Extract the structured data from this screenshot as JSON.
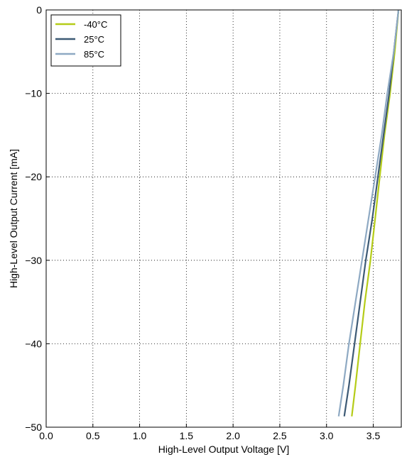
{
  "chart_data": {
    "type": "line",
    "xlabel": "High-Level Output Voltage [V]",
    "ylabel": "High-Level Output Current [mA]",
    "xlim": [
      0.0,
      3.8
    ],
    "ylim": [
      -50,
      0
    ],
    "xticks": [
      "0.0",
      "0.5",
      "1.0",
      "1.5",
      "2.0",
      "2.5",
      "3.0",
      "3.5"
    ],
    "xtick_values": [
      0.0,
      0.5,
      1.0,
      1.5,
      2.0,
      2.5,
      3.0,
      3.5
    ],
    "yticks": [
      "0",
      "−10",
      "−20",
      "−30",
      "−40",
      "−50"
    ],
    "ytick_values": [
      0,
      -10,
      -20,
      -30,
      -40,
      -50
    ],
    "grid": true,
    "legend_position": "top-left",
    "series": [
      {
        "name": "-40°C",
        "color": "#b5cc18",
        "points": [
          [
            3.77,
            0
          ],
          [
            3.73,
            -5
          ],
          [
            3.68,
            -10
          ],
          [
            3.62,
            -15
          ],
          [
            3.57,
            -20
          ],
          [
            3.52,
            -25
          ],
          [
            3.47,
            -30
          ],
          [
            3.41,
            -35
          ],
          [
            3.36,
            -40
          ],
          [
            3.31,
            -45
          ],
          [
            3.27,
            -48.7
          ]
        ]
      },
      {
        "name": "25°C",
        "color": "#3d5a75",
        "points": [
          [
            3.77,
            0
          ],
          [
            3.72,
            -5
          ],
          [
            3.67,
            -10
          ],
          [
            3.61,
            -15
          ],
          [
            3.55,
            -20
          ],
          [
            3.49,
            -25
          ],
          [
            3.42,
            -30
          ],
          [
            3.36,
            -35
          ],
          [
            3.3,
            -40
          ],
          [
            3.24,
            -45
          ],
          [
            3.19,
            -48.7
          ]
        ]
      },
      {
        "name": "85°C",
        "color": "#8ea9c3",
        "points": [
          [
            3.77,
            0
          ],
          [
            3.72,
            -5
          ],
          [
            3.65,
            -10
          ],
          [
            3.59,
            -15
          ],
          [
            3.52,
            -20
          ],
          [
            3.45,
            -25
          ],
          [
            3.38,
            -30
          ],
          [
            3.31,
            -35
          ],
          [
            3.24,
            -40
          ],
          [
            3.18,
            -45
          ],
          [
            3.13,
            -48.7
          ]
        ]
      }
    ]
  }
}
